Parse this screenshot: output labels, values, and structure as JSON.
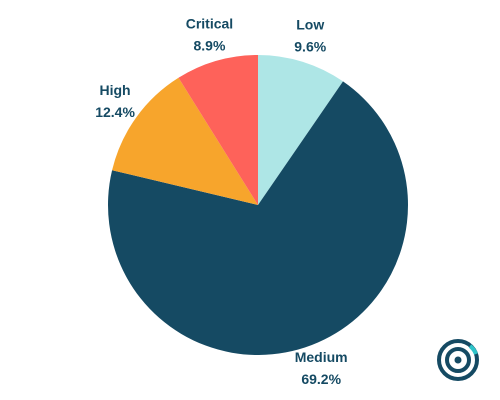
{
  "chart_data": {
    "type": "pie",
    "categories": [
      "Low",
      "Medium",
      "High",
      "Critical"
    ],
    "values": [
      9.6,
      69.2,
      12.4,
      8.9
    ],
    "value_labels": [
      "9.6%",
      "69.2%",
      "12.4%",
      "8.9%"
    ],
    "colors": [
      "#aee6e6",
      "#154a63",
      "#f7a52c",
      "#fe625a"
    ]
  }
}
